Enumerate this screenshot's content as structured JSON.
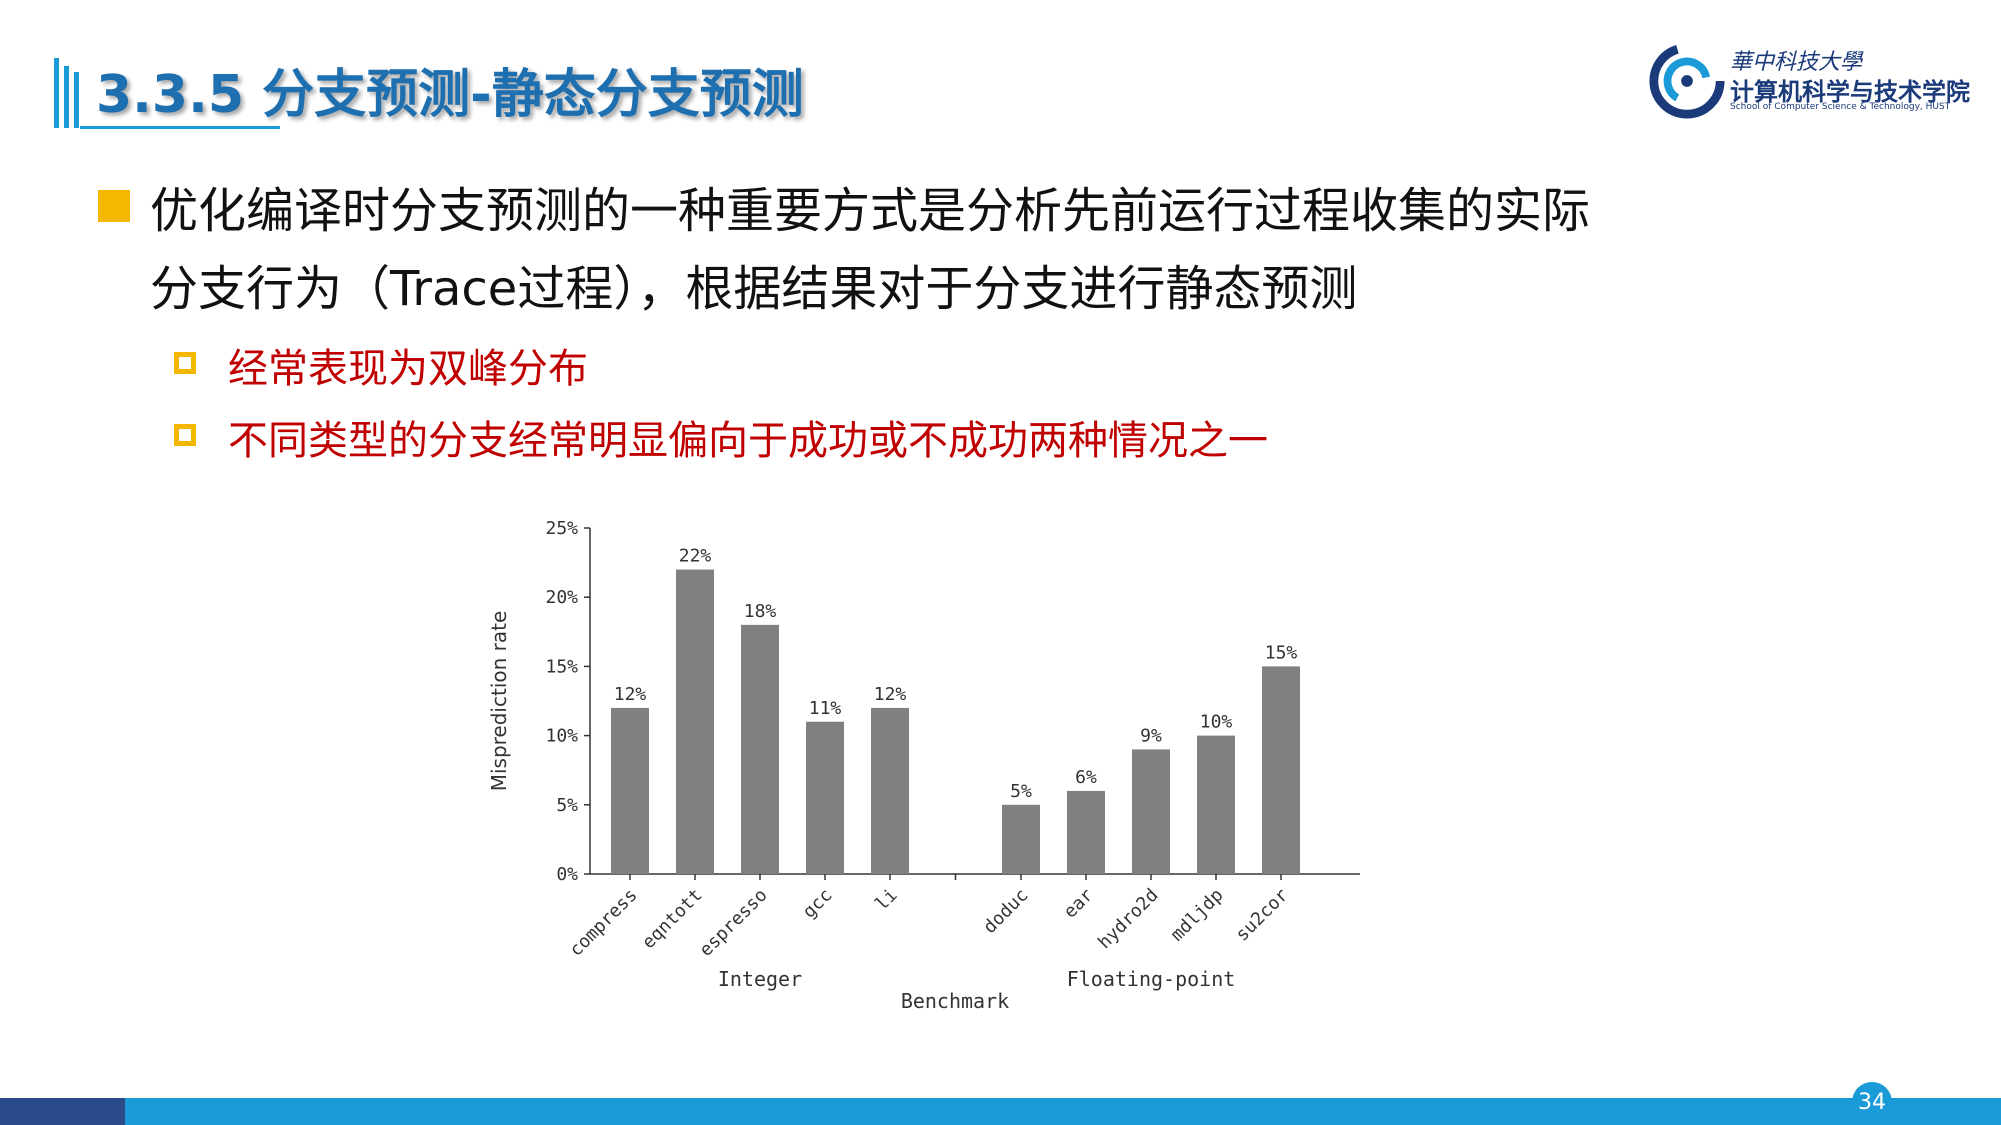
{
  "slide": {
    "title": "3.3.5 分支预测-静态分支预测",
    "page_number": "34"
  },
  "logo": {
    "line1": "華中科技大學",
    "line2": "计算机科学与技术学院",
    "line3": "School of Computer Science & Technology, HUST"
  },
  "content": {
    "main_bullet_line1": "优化编译时分支预测的一种重要方式是分析先前运行过程收集的实际",
    "main_bullet_line2": "分支行为（Trace过程），根据结果对于分支进行静态预测",
    "sub_bullets": [
      "经常表现为双峰分布",
      "不同类型的分支经常明显偏向于成功或不成功两种情况之一"
    ]
  },
  "colors": {
    "accent_blue": "#1a9ad6",
    "title_blue": "#1e6fb0",
    "bullet_yellow": "#f5b800",
    "sub_text_red": "#c00000",
    "bar_gray": "#808080"
  },
  "chart_data": {
    "type": "bar",
    "ylabel": "Misprediction rate",
    "xlabel": "Benchmark",
    "ylim": [
      0,
      25
    ],
    "yticks": [
      "0%",
      "5%",
      "10%",
      "15%",
      "20%",
      "25%"
    ],
    "groups": [
      {
        "name": "Integer",
        "categories": [
          "compress",
          "eqntott",
          "espresso",
          "gcc",
          "li"
        ],
        "values": [
          12,
          22,
          18,
          11,
          12
        ],
        "labels": [
          "12%",
          "22%",
          "18%",
          "11%",
          "12%"
        ]
      },
      {
        "name": "Floating-point",
        "categories": [
          "doduc",
          "ear",
          "hydro2d",
          "mdljdp",
          "su2cor"
        ],
        "values": [
          5,
          6,
          9,
          10,
          15
        ],
        "labels": [
          "5%",
          "6%",
          "9%",
          "10%",
          "15%"
        ]
      }
    ]
  }
}
